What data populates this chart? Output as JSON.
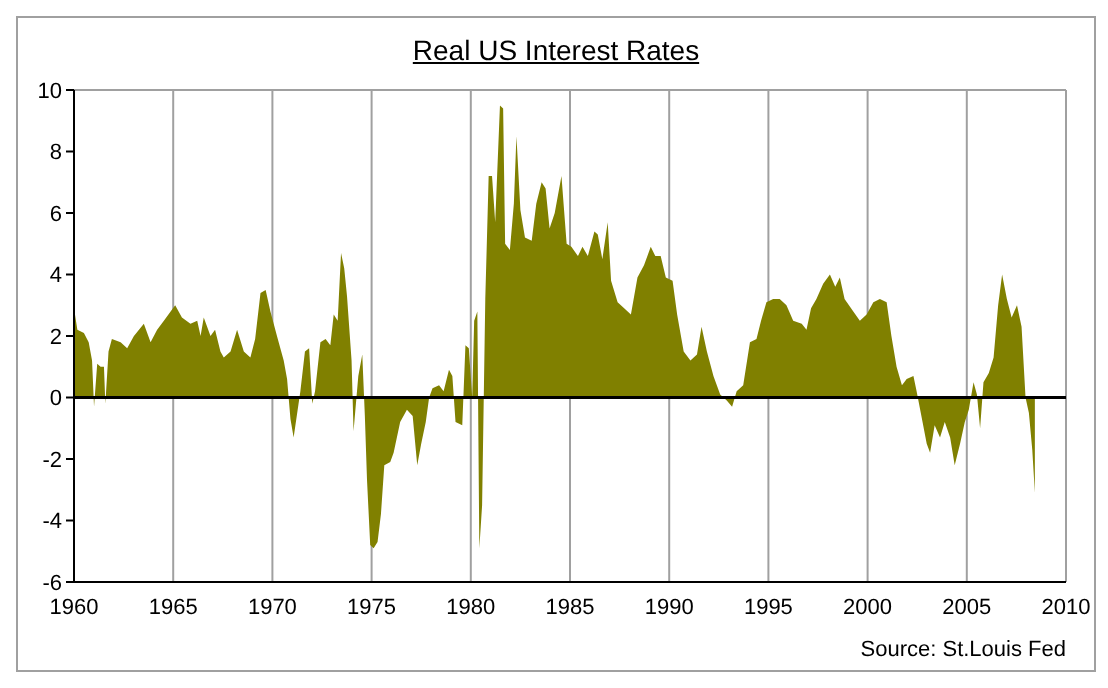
{
  "chart_data": {
    "type": "area",
    "title": "Real US Interest Rates",
    "annotations": [
      "Source: St.Louis Fed"
    ],
    "xlim": [
      1960,
      2010
    ],
    "xticks": [
      1960,
      1965,
      1970,
      1975,
      1980,
      1985,
      1990,
      1995,
      2000,
      2005,
      2010
    ],
    "ylim": [
      -6,
      10
    ],
    "yticks": [
      -6,
      -4,
      -2,
      0,
      2,
      4,
      6,
      8,
      10
    ],
    "grid": true,
    "legend": false,
    "ref_lines": [
      {
        "axis": "y",
        "value": 0,
        "color": "#000000"
      }
    ],
    "series": [
      {
        "color": "#808000",
        "x": [
          1960.0,
          1960.17,
          1960.5,
          1960.74,
          1960.91,
          1961.01,
          1961.17,
          1961.34,
          1961.51,
          1961.58,
          1961.74,
          1961.91,
          1962.35,
          1962.68,
          1963.02,
          1963.52,
          1963.86,
          1964.19,
          1964.53,
          1964.87,
          1965.1,
          1965.44,
          1965.87,
          1966.21,
          1966.38,
          1966.54,
          1966.88,
          1967.11,
          1967.38,
          1967.55,
          1967.89,
          1968.22,
          1968.56,
          1968.89,
          1969.13,
          1969.4,
          1969.66,
          1969.9,
          1970.23,
          1970.57,
          1970.74,
          1970.91,
          1971.07,
          1971.41,
          1971.64,
          1971.85,
          1972.01,
          1972.15,
          1972.42,
          1972.68,
          1972.92,
          1973.09,
          1973.29,
          1973.46,
          1973.62,
          1973.76,
          1973.99,
          1974.09,
          1974.33,
          1974.53,
          1974.66,
          1974.77,
          1974.93,
          1975.1,
          1975.3,
          1975.47,
          1975.64,
          1975.94,
          1976.11,
          1976.44,
          1976.78,
          1977.07,
          1977.3,
          1977.5,
          1977.73,
          1977.9,
          1978.07,
          1978.4,
          1978.63,
          1978.9,
          1979.07,
          1979.23,
          1979.57,
          1979.73,
          1979.9,
          1980.07,
          1980.17,
          1980.33,
          1980.43,
          1980.57,
          1980.73,
          1980.9,
          1981.07,
          1981.23,
          1981.47,
          1981.63,
          1981.73,
          1981.97,
          1982.17,
          1982.3,
          1982.5,
          1982.73,
          1983.07,
          1983.3,
          1983.57,
          1983.77,
          1983.97,
          1984.23,
          1984.57,
          1984.83,
          1985.07,
          1985.4,
          1985.63,
          1985.9,
          1986.23,
          1986.4,
          1986.63,
          1986.9,
          1987.07,
          1987.4,
          1987.73,
          1988.07,
          1988.4,
          1988.73,
          1989.07,
          1989.3,
          1989.57,
          1989.83,
          1990.17,
          1990.4,
          1990.73,
          1991.07,
          1991.4,
          1991.63,
          1991.9,
          1992.23,
          1992.57,
          1992.9,
          1993.17,
          1993.4,
          1993.73,
          1994.07,
          1994.4,
          1994.63,
          1994.9,
          1995.24,
          1995.57,
          1995.91,
          1996.25,
          1996.68,
          1996.92,
          1997.15,
          1997.42,
          1997.76,
          1998.1,
          1998.37,
          1998.6,
          1998.84,
          1999.28,
          1999.61,
          1999.95,
          2000.29,
          2000.62,
          2000.96,
          2001.2,
          2001.46,
          2001.73,
          2001.97,
          2002.31,
          2002.47,
          2002.74,
          2002.98,
          2003.15,
          2003.38,
          2003.65,
          2003.89,
          2004.16,
          2004.39,
          2004.66,
          2004.9,
          2005.1,
          2005.34,
          2005.51,
          2005.67,
          2005.84,
          2006.11,
          2006.35,
          2006.58,
          2006.78,
          2007.02,
          2007.26,
          2007.53,
          2007.76,
          2007.96,
          2008.13,
          2008.3,
          2008.43
        ],
        "values": [
          2.9,
          2.2,
          2.1,
          1.8,
          1.2,
          -0.3,
          1.1,
          1.0,
          1.0,
          -0.2,
          1.5,
          1.9,
          1.8,
          1.6,
          2.0,
          2.4,
          1.8,
          2.2,
          2.5,
          2.8,
          3.0,
          2.6,
          2.4,
          2.5,
          2.0,
          2.6,
          2.0,
          2.2,
          1.5,
          1.3,
          1.5,
          2.2,
          1.5,
          1.3,
          1.9,
          3.4,
          3.5,
          2.8,
          2.0,
          1.2,
          0.6,
          -0.7,
          -1.3,
          0.2,
          1.5,
          1.6,
          -0.2,
          0.2,
          1.8,
          1.9,
          1.7,
          2.7,
          2.5,
          4.7,
          4.2,
          3.3,
          1.2,
          -1.1,
          0.7,
          1.4,
          -0.6,
          -2.7,
          -4.8,
          -4.9,
          -4.7,
          -3.8,
          -2.2,
          -2.1,
          -1.8,
          -0.8,
          -0.4,
          -0.6,
          -2.2,
          -1.5,
          -0.8,
          0.0,
          0.3,
          0.4,
          0.2,
          0.9,
          0.7,
          -0.8,
          -0.9,
          1.7,
          1.6,
          0.0,
          2.5,
          2.8,
          -4.9,
          -3.5,
          3.2,
          7.2,
          7.2,
          5.7,
          9.5,
          9.4,
          5.0,
          4.8,
          6.3,
          8.5,
          6.1,
          5.2,
          5.1,
          6.3,
          7.0,
          6.8,
          5.5,
          6.0,
          7.2,
          5.0,
          4.9,
          4.6,
          4.9,
          4.6,
          5.4,
          5.3,
          4.5,
          5.7,
          3.8,
          3.1,
          2.9,
          2.7,
          3.9,
          4.3,
          4.9,
          4.6,
          4.6,
          3.9,
          3.8,
          2.7,
          1.5,
          1.2,
          1.4,
          2.3,
          1.5,
          0.7,
          0.1,
          -0.1,
          -0.3,
          0.2,
          0.4,
          1.8,
          1.9,
          2.5,
          3.1,
          3.2,
          3.2,
          3.0,
          2.5,
          2.4,
          2.2,
          2.9,
          3.2,
          3.7,
          4.0,
          3.6,
          3.9,
          3.2,
          2.8,
          2.5,
          2.7,
          3.1,
          3.2,
          3.1,
          2.0,
          1.0,
          0.4,
          0.6,
          0.7,
          0.2,
          -0.7,
          -1.5,
          -1.8,
          -0.9,
          -1.3,
          -0.8,
          -1.3,
          -2.2,
          -1.5,
          -0.8,
          -0.4,
          0.5,
          0.1,
          -1.0,
          0.5,
          0.8,
          1.3,
          3.0,
          4.0,
          3.2,
          2.6,
          3.0,
          2.3,
          0.0,
          -0.5,
          -1.7,
          -3.1
        ]
      }
    ]
  }
}
